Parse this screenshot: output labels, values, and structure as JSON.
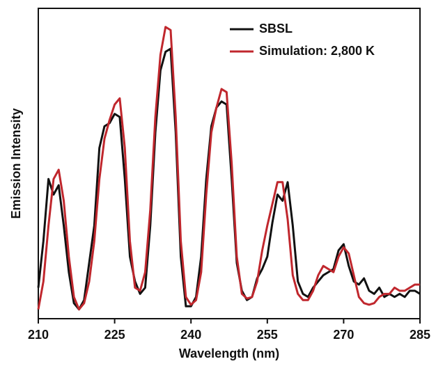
{
  "chart_data": {
    "type": "line",
    "xlabel": "Wavelength (nm)",
    "ylabel": "Emission Intensity",
    "x": [
      210,
      211,
      212,
      213,
      214,
      215,
      216,
      217,
      218,
      219,
      220,
      221,
      222,
      223,
      224,
      225,
      226,
      227,
      228,
      229,
      230,
      231,
      232,
      233,
      234,
      235,
      236,
      237,
      238,
      239,
      240,
      241,
      242,
      243,
      244,
      245,
      246,
      247,
      248,
      249,
      250,
      251,
      252,
      253,
      254,
      255,
      256,
      257,
      258,
      259,
      260,
      261,
      262,
      263,
      264,
      265,
      266,
      267,
      268,
      269,
      270,
      271,
      272,
      273,
      274,
      275,
      276,
      277,
      278,
      279,
      280,
      281,
      282,
      283,
      284,
      285
    ],
    "series": [
      {
        "name": "SBSL",
        "color": "#111111",
        "values": [
          0.1,
          0.25,
          0.45,
          0.4,
          0.43,
          0.3,
          0.15,
          0.05,
          0.03,
          0.06,
          0.18,
          0.3,
          0.55,
          0.62,
          0.63,
          0.66,
          0.65,
          0.45,
          0.2,
          0.12,
          0.08,
          0.1,
          0.3,
          0.6,
          0.8,
          0.86,
          0.87,
          0.6,
          0.2,
          0.04,
          0.04,
          0.07,
          0.2,
          0.45,
          0.62,
          0.68,
          0.7,
          0.69,
          0.45,
          0.18,
          0.09,
          0.06,
          0.07,
          0.13,
          0.16,
          0.2,
          0.31,
          0.4,
          0.38,
          0.44,
          0.3,
          0.12,
          0.08,
          0.07,
          0.1,
          0.12,
          0.14,
          0.15,
          0.16,
          0.22,
          0.24,
          0.17,
          0.12,
          0.11,
          0.13,
          0.09,
          0.08,
          0.1,
          0.07,
          0.08,
          0.07,
          0.08,
          0.07,
          0.09,
          0.09,
          0.08
        ]
      },
      {
        "name": "Simulation: 2,800 K",
        "color": "#c0272d",
        "values": [
          0.03,
          0.12,
          0.3,
          0.45,
          0.48,
          0.38,
          0.2,
          0.07,
          0.03,
          0.05,
          0.12,
          0.25,
          0.45,
          0.58,
          0.64,
          0.69,
          0.71,
          0.55,
          0.25,
          0.1,
          0.09,
          0.15,
          0.35,
          0.65,
          0.85,
          0.94,
          0.93,
          0.65,
          0.25,
          0.07,
          0.045,
          0.06,
          0.15,
          0.4,
          0.6,
          0.68,
          0.74,
          0.73,
          0.5,
          0.2,
          0.08,
          0.065,
          0.07,
          0.12,
          0.22,
          0.3,
          0.37,
          0.44,
          0.44,
          0.32,
          0.14,
          0.08,
          0.06,
          0.06,
          0.09,
          0.14,
          0.17,
          0.16,
          0.15,
          0.2,
          0.23,
          0.21,
          0.14,
          0.07,
          0.05,
          0.045,
          0.05,
          0.07,
          0.08,
          0.08,
          0.1,
          0.09,
          0.09,
          0.1,
          0.11,
          0.11
        ]
      }
    ],
    "xlim": [
      210,
      285
    ],
    "xticks": [
      210,
      225,
      240,
      255,
      270,
      285
    ],
    "ylim": [
      0,
      1
    ],
    "legend": "upper right"
  }
}
